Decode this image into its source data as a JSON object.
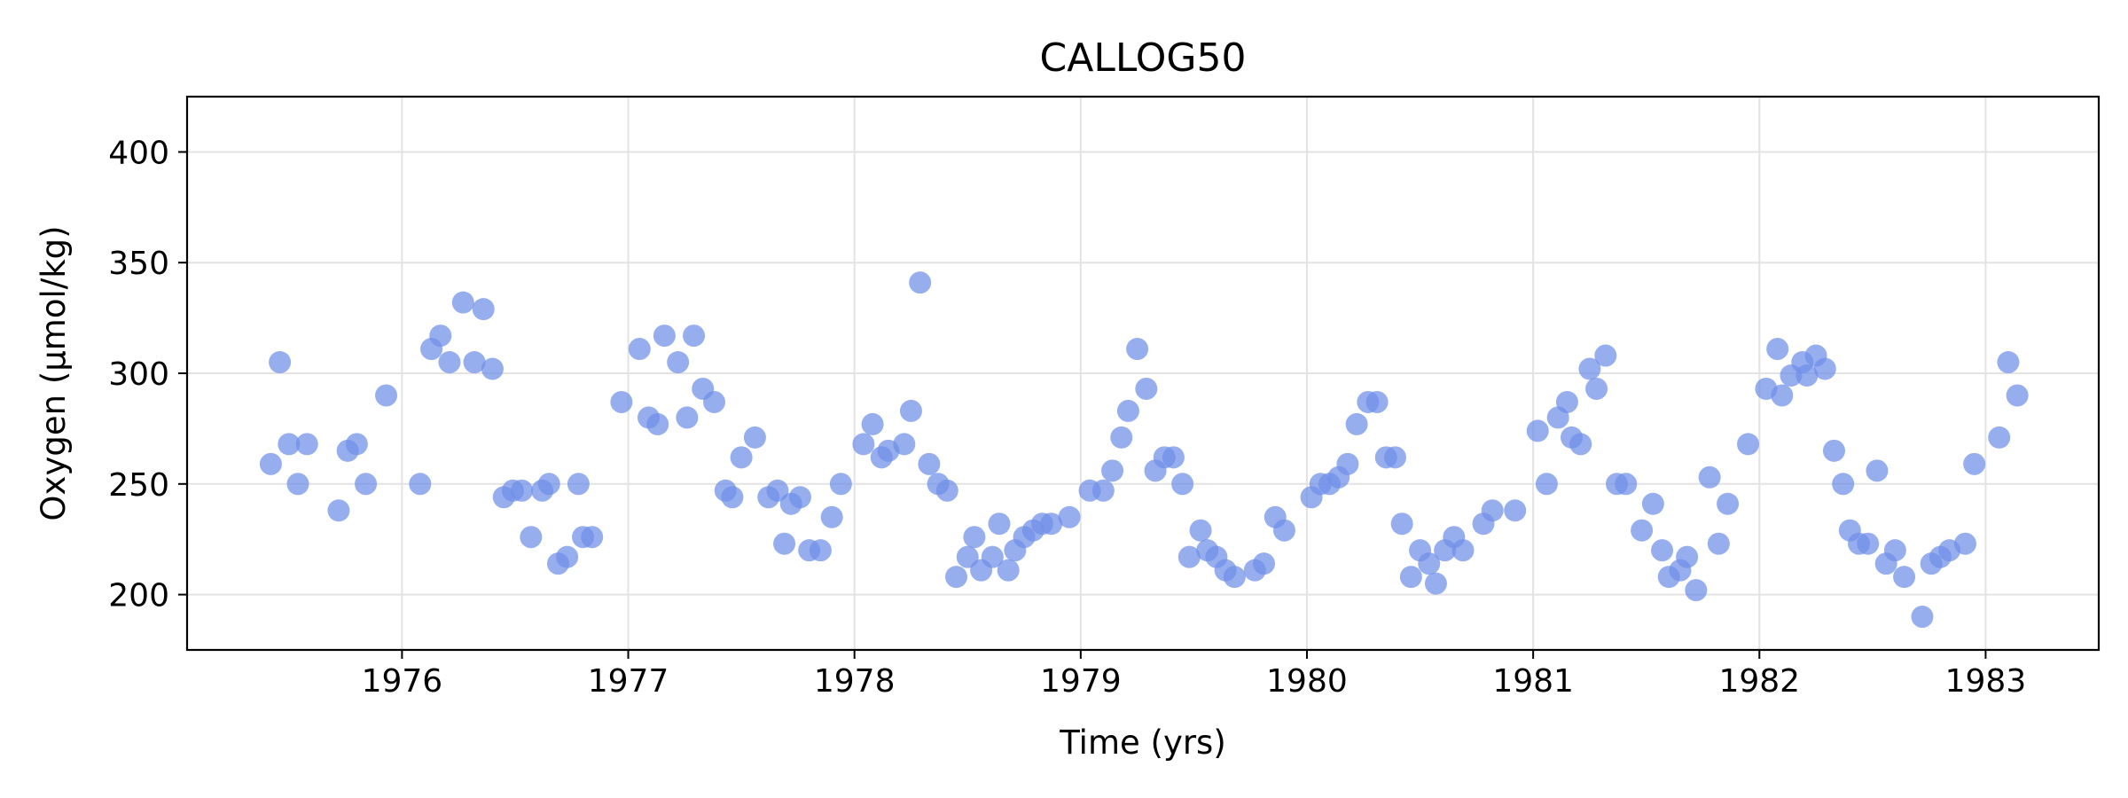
{
  "chart_data": {
    "type": "scatter",
    "title": "CALLOG50",
    "xlabel": "Time (yrs)",
    "ylabel": "Oxygen (µmol/kg)",
    "xlim": [
      1975.05,
      1983.5
    ],
    "ylim": [
      175,
      425
    ],
    "xticks": [
      1976,
      1977,
      1978,
      1979,
      1980,
      1981,
      1982,
      1983
    ],
    "yticks": [
      200,
      250,
      300,
      350,
      400
    ],
    "grid": true,
    "marker_color": "#6f8fe8",
    "points": [
      [
        1975.42,
        259
      ],
      [
        1975.46,
        305
      ],
      [
        1975.5,
        268
      ],
      [
        1975.54,
        250
      ],
      [
        1975.58,
        268
      ],
      [
        1975.72,
        238
      ],
      [
        1975.76,
        265
      ],
      [
        1975.8,
        268
      ],
      [
        1975.84,
        250
      ],
      [
        1975.93,
        290
      ],
      [
        1976.08,
        250
      ],
      [
        1976.13,
        311
      ],
      [
        1976.17,
        317
      ],
      [
        1976.21,
        305
      ],
      [
        1976.27,
        332
      ],
      [
        1976.32,
        305
      ],
      [
        1976.36,
        329
      ],
      [
        1976.4,
        302
      ],
      [
        1976.45,
        244
      ],
      [
        1976.49,
        247
      ],
      [
        1976.53,
        247
      ],
      [
        1976.57,
        226
      ],
      [
        1976.62,
        247
      ],
      [
        1976.65,
        250
      ],
      [
        1976.69,
        214
      ],
      [
        1976.73,
        217
      ],
      [
        1976.78,
        250
      ],
      [
        1976.8,
        226
      ],
      [
        1976.84,
        226
      ],
      [
        1976.97,
        287
      ],
      [
        1977.05,
        311
      ],
      [
        1977.09,
        280
      ],
      [
        1977.13,
        277
      ],
      [
        1977.16,
        317
      ],
      [
        1977.22,
        305
      ],
      [
        1977.26,
        280
      ],
      [
        1977.29,
        317
      ],
      [
        1977.33,
        293
      ],
      [
        1977.38,
        287
      ],
      [
        1977.43,
        247
      ],
      [
        1977.46,
        244
      ],
      [
        1977.5,
        262
      ],
      [
        1977.56,
        271
      ],
      [
        1977.62,
        244
      ],
      [
        1977.66,
        247
      ],
      [
        1977.69,
        223
      ],
      [
        1977.72,
        241
      ],
      [
        1977.76,
        244
      ],
      [
        1977.8,
        220
      ],
      [
        1977.85,
        220
      ],
      [
        1977.9,
        235
      ],
      [
        1977.94,
        250
      ],
      [
        1978.04,
        268
      ],
      [
        1978.08,
        277
      ],
      [
        1978.12,
        262
      ],
      [
        1978.15,
        265
      ],
      [
        1978.22,
        268
      ],
      [
        1978.25,
        283
      ],
      [
        1978.29,
        341
      ],
      [
        1978.33,
        259
      ],
      [
        1978.37,
        250
      ],
      [
        1978.41,
        247
      ],
      [
        1978.45,
        208
      ],
      [
        1978.5,
        217
      ],
      [
        1978.53,
        226
      ],
      [
        1978.56,
        211
      ],
      [
        1978.61,
        217
      ],
      [
        1978.64,
        232
      ],
      [
        1978.68,
        211
      ],
      [
        1978.71,
        220
      ],
      [
        1978.75,
        226
      ],
      [
        1978.79,
        229
      ],
      [
        1978.83,
        232
      ],
      [
        1978.87,
        232
      ],
      [
        1978.95,
        235
      ],
      [
        1979.04,
        247
      ],
      [
        1979.1,
        247
      ],
      [
        1979.14,
        256
      ],
      [
        1979.18,
        271
      ],
      [
        1979.21,
        283
      ],
      [
        1979.25,
        311
      ],
      [
        1979.29,
        293
      ],
      [
        1979.33,
        256
      ],
      [
        1979.37,
        262
      ],
      [
        1979.41,
        262
      ],
      [
        1979.45,
        250
      ],
      [
        1979.48,
        217
      ],
      [
        1979.53,
        229
      ],
      [
        1979.56,
        220
      ],
      [
        1979.6,
        217
      ],
      [
        1979.64,
        211
      ],
      [
        1979.68,
        208
      ],
      [
        1979.77,
        211
      ],
      [
        1979.81,
        214
      ],
      [
        1979.86,
        235
      ],
      [
        1979.9,
        229
      ],
      [
        1980.02,
        244
      ],
      [
        1980.06,
        250
      ],
      [
        1980.1,
        250
      ],
      [
        1980.14,
        253
      ],
      [
        1980.18,
        259
      ],
      [
        1980.22,
        277
      ],
      [
        1980.27,
        287
      ],
      [
        1980.31,
        287
      ],
      [
        1980.35,
        262
      ],
      [
        1980.39,
        262
      ],
      [
        1980.42,
        232
      ],
      [
        1980.46,
        208
      ],
      [
        1980.5,
        220
      ],
      [
        1980.54,
        214
      ],
      [
        1980.57,
        205
      ],
      [
        1980.61,
        220
      ],
      [
        1980.65,
        226
      ],
      [
        1980.69,
        220
      ],
      [
        1980.78,
        232
      ],
      [
        1980.82,
        238
      ],
      [
        1980.92,
        238
      ],
      [
        1981.02,
        274
      ],
      [
        1981.06,
        250
      ],
      [
        1981.11,
        280
      ],
      [
        1981.15,
        287
      ],
      [
        1981.17,
        271
      ],
      [
        1981.21,
        268
      ],
      [
        1981.25,
        302
      ],
      [
        1981.28,
        293
      ],
      [
        1981.32,
        308
      ],
      [
        1981.37,
        250
      ],
      [
        1981.41,
        250
      ],
      [
        1981.48,
        229
      ],
      [
        1981.53,
        241
      ],
      [
        1981.57,
        220
      ],
      [
        1981.6,
        208
      ],
      [
        1981.65,
        211
      ],
      [
        1981.68,
        217
      ],
      [
        1981.72,
        202
      ],
      [
        1981.78,
        253
      ],
      [
        1981.82,
        223
      ],
      [
        1981.86,
        241
      ],
      [
        1981.95,
        268
      ],
      [
        1982.03,
        293
      ],
      [
        1982.08,
        311
      ],
      [
        1982.1,
        290
      ],
      [
        1982.14,
        299
      ],
      [
        1982.19,
        305
      ],
      [
        1982.21,
        299
      ],
      [
        1982.25,
        308
      ],
      [
        1982.29,
        302
      ],
      [
        1982.33,
        265
      ],
      [
        1982.37,
        250
      ],
      [
        1982.4,
        229
      ],
      [
        1982.44,
        223
      ],
      [
        1982.48,
        223
      ],
      [
        1982.52,
        256
      ],
      [
        1982.56,
        214
      ],
      [
        1982.6,
        220
      ],
      [
        1982.64,
        208
      ],
      [
        1982.72,
        190
      ],
      [
        1982.76,
        214
      ],
      [
        1982.8,
        217
      ],
      [
        1982.84,
        220
      ],
      [
        1982.91,
        223
      ],
      [
        1982.95,
        259
      ],
      [
        1983.06,
        271
      ],
      [
        1983.1,
        305
      ],
      [
        1983.14,
        290
      ]
    ]
  }
}
